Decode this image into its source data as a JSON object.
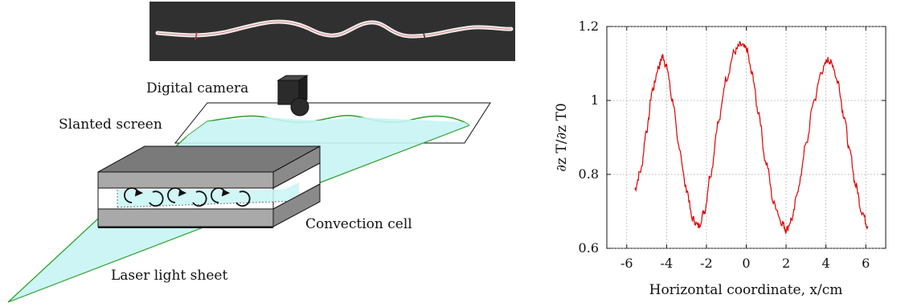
{
  "schematic": {
    "labels": {
      "camera": "Digital camera",
      "screen": "Slanted screen",
      "cell": "Convection cell",
      "laser": "Laser light sheet"
    },
    "photo": {
      "background": "#2a2a2a",
      "trace": "#e8e0e0"
    },
    "colors": {
      "sheet": "#c8f4f4",
      "sheet_edge": "#2a9d2a",
      "plate": "#a9a9a9",
      "outline": "#111111"
    }
  },
  "chart_data": {
    "type": "line",
    "xlabel": "Horizontal coordinate, x/cm",
    "ylabel": "∂z T/∂z T0",
    "xlim": [
      -7,
      7
    ],
    "ylim": [
      0.6,
      1.2
    ],
    "x_ticks": [
      "-6",
      "-4",
      "-2",
      "0",
      "2",
      "4",
      "6"
    ],
    "y_ticks": [
      "0.6",
      "0.8",
      "1",
      "1.2"
    ],
    "grid": true,
    "series": [
      {
        "color": "#e00000",
        "x": [
          -5.6,
          -5.3,
          -5.0,
          -4.7,
          -4.4,
          -4.2,
          -4.0,
          -3.7,
          -3.4,
          -3.0,
          -2.7,
          -2.4,
          -2.1,
          -1.8,
          -1.4,
          -1.0,
          -0.6,
          -0.3,
          0.0,
          0.3,
          0.6,
          1.0,
          1.4,
          1.8,
          2.0,
          2.3,
          2.6,
          3.0,
          3.4,
          3.8,
          4.1,
          4.3,
          4.6,
          4.9,
          5.2,
          5.5,
          5.8,
          6.1
        ],
        "y": [
          0.76,
          0.81,
          0.92,
          1.03,
          1.09,
          1.12,
          1.09,
          1.0,
          0.88,
          0.76,
          0.68,
          0.66,
          0.7,
          0.8,
          0.94,
          1.06,
          1.13,
          1.15,
          1.14,
          1.07,
          0.97,
          0.83,
          0.72,
          0.67,
          0.65,
          0.68,
          0.76,
          0.88,
          1.0,
          1.08,
          1.11,
          1.1,
          1.05,
          0.96,
          0.86,
          0.77,
          0.7,
          0.66
        ]
      }
    ]
  }
}
